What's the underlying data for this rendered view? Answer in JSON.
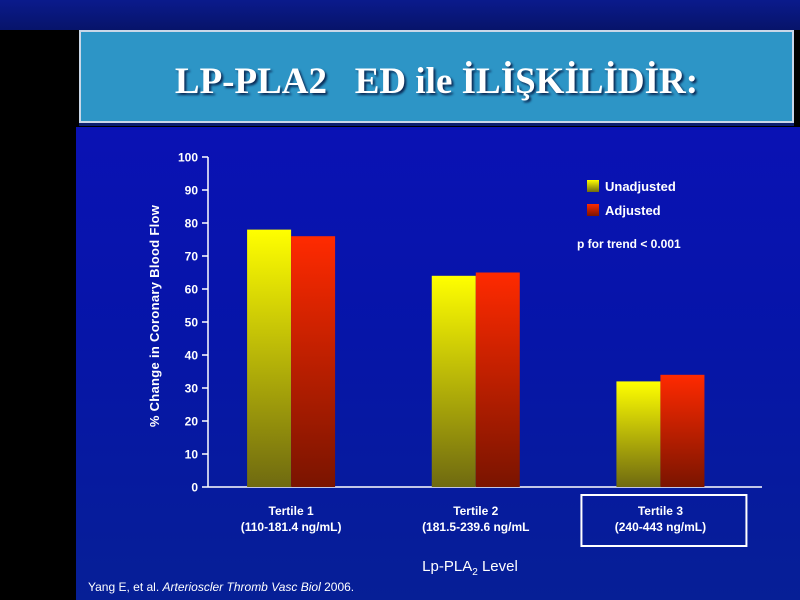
{
  "slide": {
    "title": "LP-PLA2   ED ile İLİŞKİLİDİR:",
    "citation_authors": "Yang E, et al. ",
    "citation_journal": "Arterioscler Thromb Vasc Biol",
    "citation_year": " 2006."
  },
  "chart_data": {
    "type": "bar",
    "title": "",
    "categories": [
      [
        "Tertile 1",
        "(110-181.4 ng/mL)"
      ],
      [
        "Tertile 2",
        "(181.5-239.6 ng/mL"
      ],
      [
        "Tertile 3",
        "(240-443 ng/mL)"
      ]
    ],
    "highlighted_category": 2,
    "series": [
      {
        "name": "Unadjusted",
        "values": [
          78,
          64,
          32
        ],
        "color_top": "#ffff00",
        "color_bottom": "#6f6a10"
      },
      {
        "name": "Adjusted",
        "values": [
          76,
          65,
          34
        ],
        "color_top": "#ff2a00",
        "color_bottom": "#7a1400"
      }
    ],
    "ylabel": "% Change in Coronary Blood Flow",
    "xlabel_main": "Lp-PLA",
    "xlabel_sub": "2",
    "xlabel_tail": " Level",
    "ylim": [
      0,
      100
    ],
    "yticks": [
      0,
      10,
      20,
      30,
      40,
      50,
      60,
      70,
      80,
      90,
      100
    ],
    "legend_position": "top-right",
    "annotation": "p for trend < 0.001",
    "grid": false
  }
}
